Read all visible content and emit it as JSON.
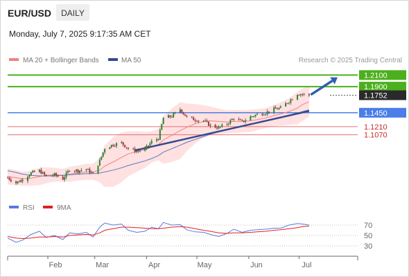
{
  "header": {
    "symbol": "EUR/USD",
    "timeframe": "DAILY",
    "datetime": "Monday, July 7, 2025 9:17:35 AM CET"
  },
  "legend": {
    "bollinger_label": "MA 20 + Bollinger Bands",
    "ma50_label": "MA 50",
    "credit": "Research © 2025 Trading Central"
  },
  "colors": {
    "up_candle": "#1d8b2a",
    "down_candle": "#b33131",
    "ma20": "#f08080",
    "ma50": "#5a79b8",
    "band_fill": "#ffe1e1",
    "resistance": "#4caf1d",
    "support": "#4a7ee8",
    "minor_support": "#e07070",
    "trendline": "#34498f",
    "rsi": "#5a79e0",
    "rsi_ma": "#e02020"
  },
  "chart_data": [
    {
      "type": "candlestick",
      "title": "EUR/USD",
      "xlabel": "",
      "ylabel": "",
      "x_ticks": [
        "Feb",
        "Mar",
        "Apr",
        "May",
        "Jun",
        "Jul"
      ],
      "x_tick_dates": [
        "2025-02-01",
        "2025-03-01",
        "2025-04-01",
        "2025-05-01",
        "2025-06-01",
        "2025-07-01"
      ],
      "x_range": [
        "2025-01-08",
        "2025-08-05"
      ],
      "ylim": [
        1.005,
        1.22
      ],
      "last_price": "1.1752",
      "levels": [
        {
          "label": "1.2100",
          "value": 1.21,
          "kind": "resistance"
        },
        {
          "label": "1.1900",
          "value": 1.19,
          "kind": "resistance"
        },
        {
          "label": "1.1450",
          "value": 1.145,
          "kind": "pivot"
        },
        {
          "label": "1.1210",
          "value": 1.121,
          "kind": "support"
        },
        {
          "label": "1.1070",
          "value": 1.107,
          "kind": "support"
        }
      ],
      "trendline": {
        "start": [
          "2025-03-25",
          1.08
        ],
        "end": [
          "2025-07-07",
          1.148
        ]
      },
      "projection_arrow": {
        "start": [
          "2025-07-08",
          1.176
        ],
        "end": [
          "2025-07-24",
          1.206
        ]
      },
      "close_series": {
        "dates": [
          "2025-01-08",
          "2025-01-13",
          "2025-01-17",
          "2025-01-22",
          "2025-01-27",
          "2025-01-31",
          "2025-02-05",
          "2025-02-10",
          "2025-02-14",
          "2025-02-19",
          "2025-02-24",
          "2025-02-28",
          "2025-03-04",
          "2025-03-07",
          "2025-03-12",
          "2025-03-17",
          "2025-03-21",
          "2025-03-26",
          "2025-03-31",
          "2025-04-04",
          "2025-04-08",
          "2025-04-11",
          "2025-04-16",
          "2025-04-21",
          "2025-04-25",
          "2025-04-30",
          "2025-05-05",
          "2025-05-09",
          "2025-05-14",
          "2025-05-19",
          "2025-05-23",
          "2025-05-28",
          "2025-06-02",
          "2025-06-06",
          "2025-06-11",
          "2025-06-16",
          "2025-06-20",
          "2025-06-25",
          "2025-06-30",
          "2025-07-03",
          "2025-07-07"
        ],
        "close": [
          1.033,
          1.024,
          1.03,
          1.041,
          1.045,
          1.035,
          1.038,
          1.031,
          1.047,
          1.045,
          1.048,
          1.039,
          1.062,
          1.084,
          1.09,
          1.093,
          1.083,
          1.079,
          1.082,
          1.095,
          1.101,
          1.136,
          1.139,
          1.151,
          1.137,
          1.133,
          1.131,
          1.123,
          1.119,
          1.126,
          1.136,
          1.129,
          1.138,
          1.142,
          1.145,
          1.151,
          1.153,
          1.165,
          1.178,
          1.177,
          1.175
        ]
      },
      "ma20": [
        1.035,
        1.033,
        1.031,
        1.032,
        1.035,
        1.037,
        1.038,
        1.037,
        1.039,
        1.041,
        1.043,
        1.043,
        1.046,
        1.053,
        1.06,
        1.068,
        1.074,
        1.078,
        1.081,
        1.086,
        1.09,
        1.098,
        1.106,
        1.114,
        1.12,
        1.126,
        1.13,
        1.131,
        1.13,
        1.129,
        1.13,
        1.13,
        1.131,
        1.133,
        1.136,
        1.14,
        1.143,
        1.147,
        1.153,
        1.159,
        1.164
      ],
      "ma50": [
        1.045,
        1.042,
        1.039,
        1.037,
        1.036,
        1.036,
        1.036,
        1.037,
        1.038,
        1.039,
        1.04,
        1.04,
        1.041,
        1.043,
        1.046,
        1.05,
        1.054,
        1.058,
        1.062,
        1.066,
        1.071,
        1.077,
        1.083,
        1.089,
        1.094,
        1.099,
        1.104,
        1.108,
        1.112,
        1.116,
        1.119,
        1.122,
        1.125,
        1.128,
        1.131,
        1.134,
        1.137,
        1.14,
        1.144,
        1.147,
        1.15
      ],
      "bollinger_upper": [
        1.049,
        1.046,
        1.043,
        1.045,
        1.05,
        1.051,
        1.05,
        1.048,
        1.052,
        1.054,
        1.057,
        1.057,
        1.067,
        1.089,
        1.103,
        1.111,
        1.113,
        1.113,
        1.112,
        1.113,
        1.117,
        1.139,
        1.152,
        1.163,
        1.161,
        1.16,
        1.158,
        1.156,
        1.152,
        1.149,
        1.15,
        1.149,
        1.15,
        1.151,
        1.153,
        1.158,
        1.163,
        1.17,
        1.181,
        1.187,
        1.19
      ],
      "bollinger_lower": [
        1.021,
        1.02,
        1.019,
        1.019,
        1.02,
        1.023,
        1.026,
        1.026,
        1.026,
        1.028,
        1.029,
        1.029,
        1.025,
        1.017,
        1.017,
        1.025,
        1.035,
        1.043,
        1.05,
        1.059,
        1.063,
        1.057,
        1.06,
        1.065,
        1.079,
        1.092,
        1.102,
        1.106,
        1.108,
        1.109,
        1.11,
        1.111,
        1.112,
        1.115,
        1.119,
        1.122,
        1.123,
        1.124,
        1.125,
        1.131,
        1.138
      ]
    },
    {
      "type": "line",
      "title": "",
      "xlabel": "",
      "ylabel": "",
      "legend": [
        "RSI",
        "9MA"
      ],
      "ylim": [
        10,
        90
      ],
      "y_ticks": [
        30,
        50,
        70
      ],
      "reference_lines": [
        30,
        50,
        70
      ],
      "x": [
        "2025-01-08",
        "2025-01-13",
        "2025-01-17",
        "2025-01-22",
        "2025-01-27",
        "2025-01-31",
        "2025-02-05",
        "2025-02-10",
        "2025-02-14",
        "2025-02-19",
        "2025-02-24",
        "2025-02-28",
        "2025-03-04",
        "2025-03-07",
        "2025-03-12",
        "2025-03-17",
        "2025-03-21",
        "2025-03-26",
        "2025-03-31",
        "2025-04-04",
        "2025-04-08",
        "2025-04-11",
        "2025-04-16",
        "2025-04-21",
        "2025-04-25",
        "2025-04-30",
        "2025-05-05",
        "2025-05-09",
        "2025-05-14",
        "2025-05-19",
        "2025-05-23",
        "2025-05-28",
        "2025-06-02",
        "2025-06-06",
        "2025-06-11",
        "2025-06-16",
        "2025-06-20",
        "2025-06-25",
        "2025-06-30",
        "2025-07-03",
        "2025-07-07"
      ],
      "series": [
        {
          "name": "RSI",
          "values": [
            45,
            37,
            41,
            52,
            58,
            46,
            50,
            42,
            55,
            53,
            56,
            47,
            66,
            74,
            70,
            72,
            60,
            56,
            58,
            66,
            63,
            75,
            70,
            71,
            61,
            57,
            56,
            52,
            48,
            54,
            62,
            56,
            60,
            61,
            62,
            64,
            64,
            70,
            73,
            72,
            70
          ]
        },
        {
          "name": "9MA",
          "values": [
            48,
            45,
            44,
            45,
            47,
            47,
            48,
            47,
            50,
            51,
            52,
            51,
            55,
            60,
            63,
            66,
            66,
            65,
            64,
            63,
            63,
            64,
            66,
            67,
            66,
            63,
            60,
            58,
            55,
            54,
            55,
            55,
            56,
            57,
            58,
            60,
            61,
            63,
            65,
            67,
            68
          ]
        }
      ]
    }
  ]
}
